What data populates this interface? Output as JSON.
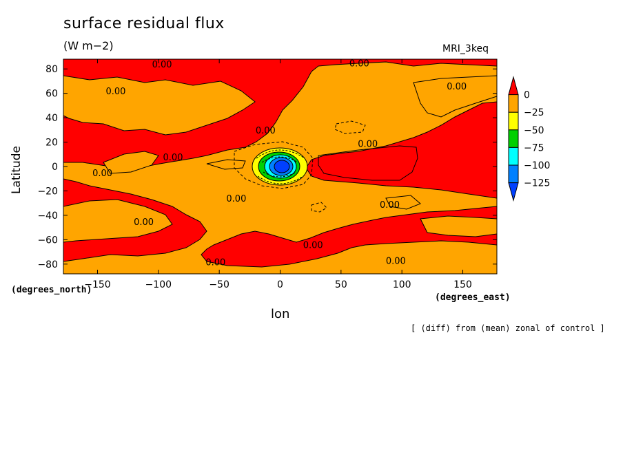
{
  "title": "surface residual flux",
  "units": "(W m−2)",
  "model": "MRI_3keq",
  "note": "[ (diff) from (mean) zonal of control ]",
  "chart_data": {
    "type": "heatmap",
    "title": "surface residual flux",
    "xlabel": "lon",
    "ylabel": "Latitude",
    "x_units": "(degrees_east)",
    "y_units": "(degrees_north)",
    "xlim": [
      -178,
      178
    ],
    "ylim": [
      -88,
      88
    ],
    "x_ticks": [
      -150,
      -100,
      -50,
      0,
      50,
      100,
      150
    ],
    "x_tick_labels": [
      "−150",
      "−100",
      "−50",
      "0",
      "50",
      "100",
      "150"
    ],
    "y_ticks": [
      80,
      60,
      40,
      20,
      0,
      -20,
      -40,
      -60,
      -80
    ],
    "y_tick_labels": [
      "80",
      "60",
      "40",
      "20",
      "0",
      "−20",
      "−40",
      "−60",
      "−80"
    ],
    "contour_labels": [
      {
        "text": "0.00",
        "x": -97,
        "y": 84
      },
      {
        "text": "0.00",
        "x": 65,
        "y": 85
      },
      {
        "text": "0.00",
        "x": -135,
        "y": 62
      },
      {
        "text": "0.00",
        "x": 145,
        "y": 66
      },
      {
        "text": "0.00",
        "x": -12,
        "y": 30
      },
      {
        "text": "0.00",
        "x": 72,
        "y": 19
      },
      {
        "text": "0.00",
        "x": -88,
        "y": 8
      },
      {
        "text": "0.00",
        "x": -146,
        "y": -5
      },
      {
        "text": "0.00",
        "x": -36,
        "y": -26
      },
      {
        "text": "0.00",
        "x": 90,
        "y": -31
      },
      {
        "text": "0.00",
        "x": -112,
        "y": -45
      },
      {
        "text": "0.00",
        "x": 27,
        "y": -64
      },
      {
        "text": "0.00",
        "x": -53,
        "y": -78
      },
      {
        "text": "0.00",
        "x": 95,
        "y": -77
      }
    ],
    "colorbar": {
      "levels": [
        "0",
        "−25",
        "−50",
        "−75",
        "−100",
        "−125"
      ],
      "colors": [
        "#ff0000",
        "#ffa500",
        "#ffff00",
        "#00d000",
        "#00ffff",
        "#0080ff",
        "#0040ff"
      ]
    },
    "features": {
      "negative_minimum": {
        "lon": 0,
        "lat": 0,
        "value_below": -125
      },
      "orange_region_lon": [
        -20,
        110
      ],
      "orange_region_lat": [
        -50,
        30
      ]
    },
    "grid": false
  }
}
